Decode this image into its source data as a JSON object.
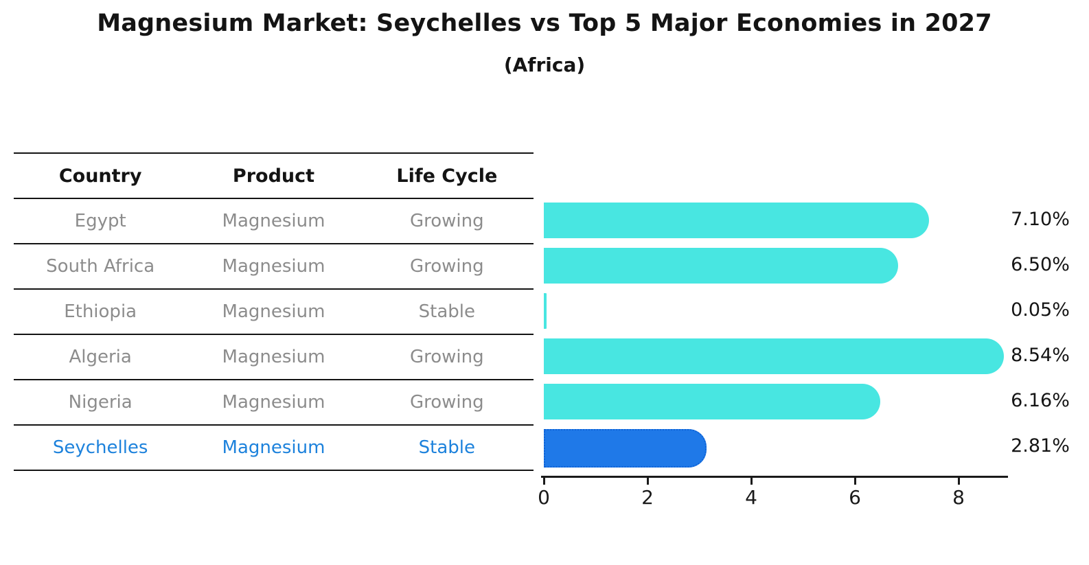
{
  "title": "Magnesium Market: Seychelles vs Top 5 Major Economies in 2027",
  "subtitle": "(Africa)",
  "table": {
    "headers": [
      "Country",
      "Product",
      "Life Cycle"
    ],
    "rows": [
      {
        "country": "Egypt",
        "product": "Magnesium",
        "life_cycle": "Growing",
        "highlighted": false
      },
      {
        "country": "South Africa",
        "product": "Magnesium",
        "life_cycle": "Growing",
        "highlighted": false
      },
      {
        "country": "Ethiopia",
        "product": "Magnesium",
        "life_cycle": "Stable",
        "highlighted": false
      },
      {
        "country": "Algeria",
        "product": "Magnesium",
        "life_cycle": "Growing",
        "highlighted": false
      },
      {
        "country": "Nigeria",
        "product": "Magnesium",
        "life_cycle": "Growing",
        "highlighted": false
      },
      {
        "country": "Seychelles",
        "product": "Magnesium",
        "life_cycle": "Stable",
        "highlighted": true
      }
    ]
  },
  "chart_data": {
    "type": "bar",
    "orientation": "horizontal",
    "title": "Magnesium Market: Seychelles vs Top 5 Major Economies in 2027 (Africa)",
    "categories": [
      "Egypt",
      "South Africa",
      "Ethiopia",
      "Algeria",
      "Nigeria",
      "Seychelles"
    ],
    "values": [
      7.1,
      6.5,
      0.05,
      8.54,
      6.16,
      2.81
    ],
    "value_labels": [
      "7.10%",
      "6.50%",
      "0.05%",
      "8.54%",
      "6.16%",
      "2.81%"
    ],
    "x_ticks": [
      "0",
      "2",
      "4",
      "6",
      "8"
    ],
    "xlim": [
      0,
      9
    ],
    "grid": false,
    "legend": false,
    "highlight_index": 5
  },
  "colors": {
    "bar": "#48e6e1",
    "highlight_bar": "#1f79e8",
    "highlight_border": "#0f63d6",
    "highlight_text": "#1d82dc",
    "table_text": "#8c8c8c",
    "axis_text": "#1a1a1a"
  }
}
